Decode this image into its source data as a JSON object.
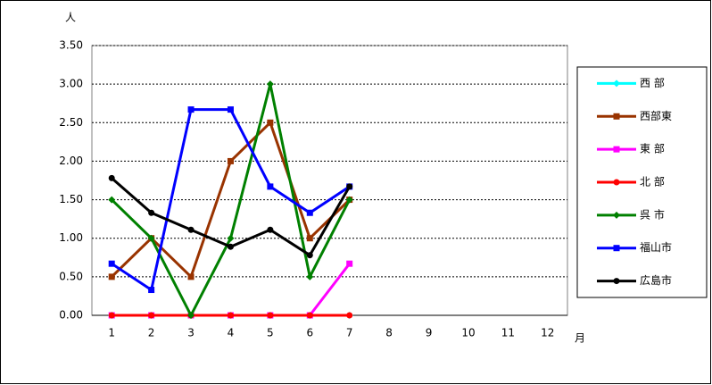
{
  "chart_data": {
    "type": "line",
    "y_label": "人",
    "x_label": "月",
    "categories": [
      "1",
      "2",
      "3",
      "4",
      "5",
      "6",
      "7",
      "8",
      "9",
      "10",
      "11",
      "12"
    ],
    "series": [
      {
        "name": "西 部",
        "color": "#00ffff",
        "marker": "diamond",
        "values": [
          0,
          0,
          0,
          0,
          0,
          0,
          0,
          null,
          null,
          null,
          null,
          null
        ]
      },
      {
        "name": "西部東",
        "color": "#993300",
        "marker": "square",
        "values": [
          0.5,
          1.0,
          0.5,
          2.0,
          2.5,
          1.0,
          1.5,
          null,
          null,
          null,
          null,
          null
        ]
      },
      {
        "name": "東 部",
        "color": "#ff00ff",
        "marker": "square",
        "values": [
          0,
          0,
          0,
          0,
          0,
          0,
          0.67,
          null,
          null,
          null,
          null,
          null
        ]
      },
      {
        "name": "北 部",
        "color": "#ff0000",
        "marker": "circle",
        "values": [
          0,
          0,
          0,
          0,
          0,
          0,
          0,
          null,
          null,
          null,
          null,
          null
        ]
      },
      {
        "name": "呉 市",
        "color": "#008000",
        "marker": "diamond",
        "values": [
          1.5,
          1.0,
          0,
          1.0,
          3.0,
          0.5,
          1.5,
          null,
          null,
          null,
          null,
          null
        ]
      },
      {
        "name": "福山市",
        "color": "#0000ff",
        "marker": "square",
        "values": [
          0.67,
          0.33,
          2.67,
          2.67,
          1.67,
          1.33,
          1.67,
          null,
          null,
          null,
          null,
          null
        ]
      },
      {
        "name": "広島市",
        "color": "#000000",
        "marker": "circle",
        "values": [
          1.78,
          1.33,
          1.11,
          0.89,
          1.11,
          0.78,
          1.67,
          null,
          null,
          null,
          null,
          null
        ]
      }
    ],
    "ylim": [
      0,
      3.5
    ],
    "yticks": [
      {
        "value": 0,
        "label": "0.00"
      },
      {
        "value": 0.5,
        "label": "0.50"
      },
      {
        "value": 1,
        "label": "1.00"
      },
      {
        "value": 1.5,
        "label": "1.50"
      },
      {
        "value": 2,
        "label": "2.00"
      },
      {
        "value": 2.5,
        "label": "2.50"
      },
      {
        "value": 3,
        "label": "3.00"
      },
      {
        "value": 3.5,
        "label": "3.50"
      }
    ],
    "grid": true,
    "legend": "right"
  }
}
